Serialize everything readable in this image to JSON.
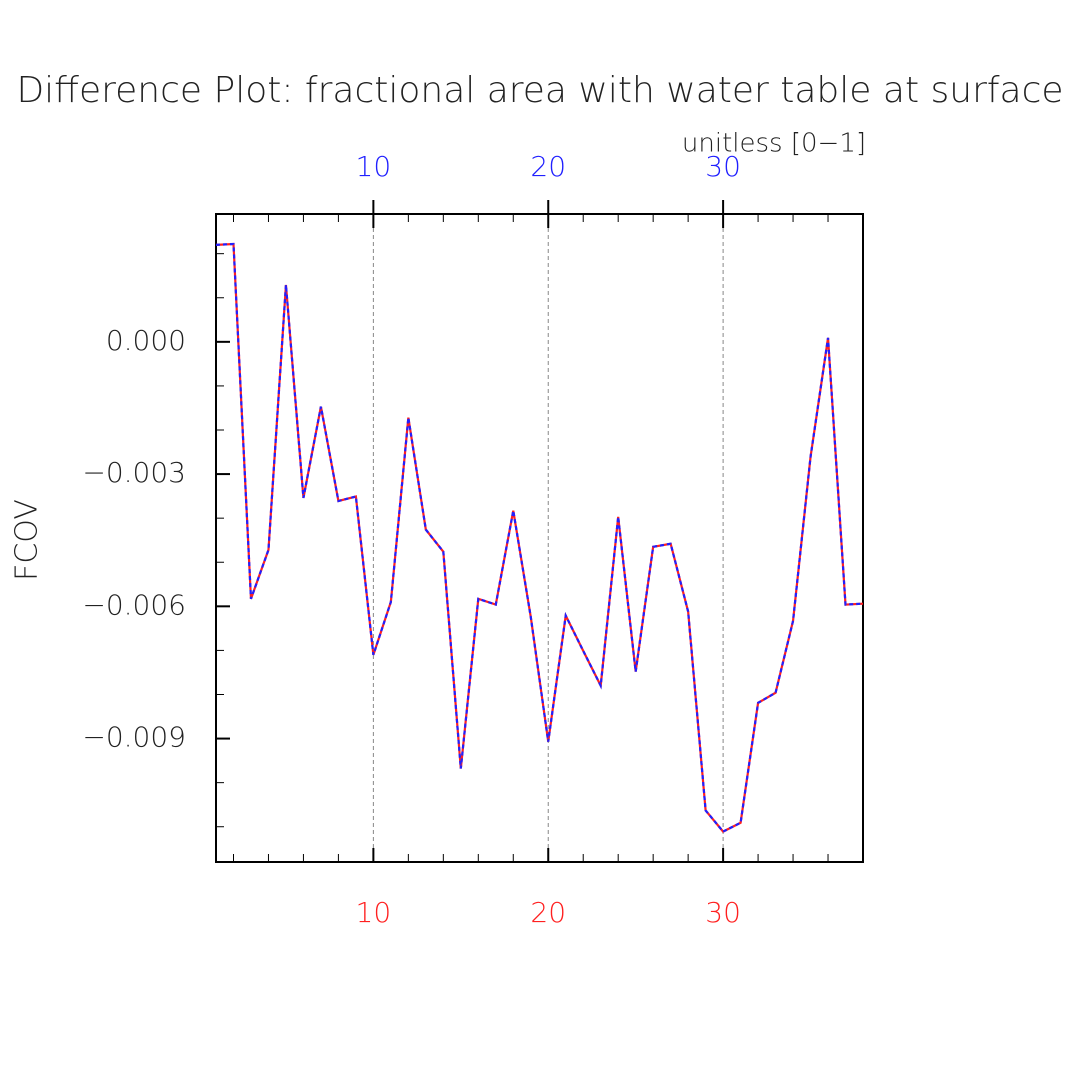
{
  "chart_data": {
    "type": "line",
    "title": "Difference Plot: fractional area with water table at surface",
    "subtitle": "unitless [0−1]",
    "y_label": "FCOV",
    "x": [
      1,
      2,
      3,
      4,
      5,
      6,
      7,
      8,
      9,
      10,
      11,
      12,
      13,
      14,
      15,
      16,
      17,
      18,
      19,
      20,
      21,
      22,
      23,
      24,
      25,
      26,
      27,
      28,
      29,
      30,
      31,
      32,
      33,
      34,
      35,
      36,
      37,
      38
    ],
    "series": [
      {
        "color": "#ff2020",
        "values": [
          0.0022,
          0.00222,
          -0.00583,
          -0.00472,
          0.00129,
          -0.00354,
          -0.00147,
          -0.00361,
          -0.00351,
          -0.0071,
          -0.0059,
          -0.00172,
          -0.00426,
          -0.00476,
          -0.00968,
          -0.00583,
          -0.00596,
          -0.00383,
          -0.00624,
          -0.00907,
          -0.00621,
          -0.00701,
          -0.0078,
          -0.00397,
          -0.00748,
          -0.00465,
          -0.00458,
          -0.00612,
          -0.01063,
          -0.01111,
          -0.01091,
          -0.00819,
          -0.00796,
          -0.00633,
          -0.00261,
          9e-05,
          -0.00596,
          -0.00594
        ]
      },
      {
        "color": "#2020ff",
        "dashed": true,
        "values": [
          0.0022,
          0.00222,
          -0.00583,
          -0.00472,
          0.00129,
          -0.00354,
          -0.00147,
          -0.00361,
          -0.00351,
          -0.0071,
          -0.0059,
          -0.00172,
          -0.00426,
          -0.00476,
          -0.00968,
          -0.00583,
          -0.00596,
          -0.00383,
          -0.00624,
          -0.00907,
          -0.00621,
          -0.00701,
          -0.0078,
          -0.00397,
          -0.00748,
          -0.00465,
          -0.00458,
          -0.00612,
          -0.01063,
          -0.01111,
          -0.01091,
          -0.00819,
          -0.00796,
          -0.00633,
          -0.00261,
          9e-05,
          -0.00596,
          -0.00594
        ]
      }
    ],
    "xlim": [
      1,
      38
    ],
    "xticks": [
      10,
      20,
      30
    ],
    "bottom_tick_color": "#ff2020",
    "top_tick_color": "#2020ff",
    "ylim": [
      -0.0118,
      0.0029
    ],
    "yticks": [
      {
        "value": -0.009,
        "label": "−0.009"
      },
      {
        "value": -0.006,
        "label": "−0.006"
      },
      {
        "value": -0.003,
        "label": "−0.003"
      },
      {
        "value": 0,
        "label": "0.000"
      }
    ],
    "grid": "x"
  }
}
